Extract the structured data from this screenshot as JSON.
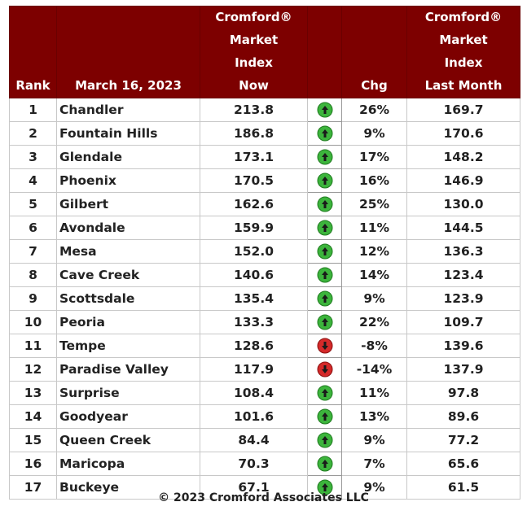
{
  "table": {
    "header": [
      [
        "Rank"
      ],
      [
        "March 16, 2023"
      ],
      [
        "Cromford®",
        "Market",
        "Index",
        "Now"
      ],
      [],
      [
        "Chg"
      ],
      [
        "Cromford®",
        "Market",
        "Index",
        "Last Month"
      ]
    ],
    "rows": [
      [
        1,
        "Chandler",
        "213.8",
        "26%",
        "169.7"
      ],
      [
        2,
        "Fountain Hills",
        "186.8",
        "9%",
        "170.6"
      ],
      [
        3,
        "Glendale",
        "173.1",
        "17%",
        "148.2"
      ],
      [
        4,
        "Phoenix",
        "170.5",
        "16%",
        "146.9"
      ],
      [
        5,
        "Gilbert",
        "162.6",
        "25%",
        "130.0"
      ],
      [
        6,
        "Avondale",
        "159.9",
        "11%",
        "144.5"
      ],
      [
        7,
        "Mesa",
        "152.0",
        "12%",
        "136.3"
      ],
      [
        8,
        "Cave Creek",
        "140.6",
        "14%",
        "123.4"
      ],
      [
        9,
        "Scottsdale",
        "135.4",
        "9%",
        "123.9"
      ],
      [
        10,
        "Peoria",
        "133.3",
        "22%",
        "109.7"
      ],
      [
        11,
        "Tempe",
        "128.6",
        "-8%",
        "139.6"
      ],
      [
        12,
        "Paradise Valley",
        "117.9",
        "-14%",
        "137.9"
      ],
      [
        13,
        "Surprise",
        "108.4",
        "11%",
        "97.8"
      ],
      [
        14,
        "Goodyear",
        "101.6",
        "13%",
        "89.6"
      ],
      [
        15,
        "Queen Creek",
        "84.4",
        "9%",
        "77.2"
      ],
      [
        16,
        "Maricopa",
        "70.3",
        "7%",
        "65.6"
      ],
      [
        17,
        "Buckeye",
        "67.1",
        "9%",
        "61.5"
      ]
    ],
    "footer": "© 2023 Cromford Associates LLC"
  }
}
